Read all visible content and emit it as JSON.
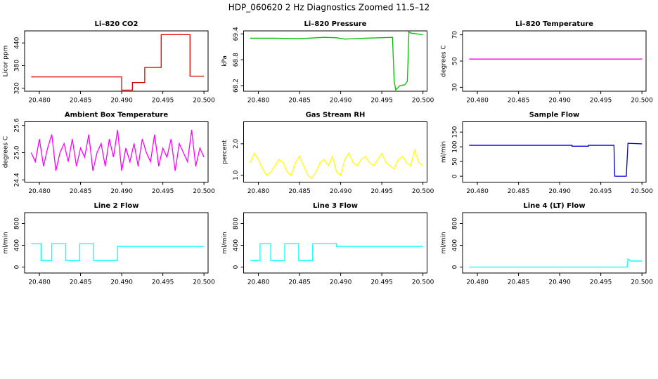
{
  "title": "HDP_060620  2 Hz Diagnostics Zoomed 11.5–12",
  "chart_data": [
    {
      "type": "line",
      "title": "Li–820 CO2",
      "ylabel": "Licor ppm",
      "color": "#e00000",
      "x": [
        20.479,
        20.49,
        20.49,
        20.4913,
        20.4913,
        20.4928,
        20.4928,
        20.4948,
        20.4948,
        20.4983,
        20.4983,
        20.5
      ],
      "values": [
        350,
        350,
        315,
        315,
        335,
        335,
        375,
        375,
        462,
        462,
        352,
        352
      ],
      "xlim": [
        20.4782,
        20.5005
      ],
      "xticks": [
        {
          "value": 20.48,
          "label": "20.480"
        },
        20.485,
        {
          "value": 20.49,
          "label": "20.490"
        },
        20.495,
        {
          "value": 20.5,
          "label": "20.500"
        }
      ],
      "ylim": [
        312,
        472
      ],
      "yticks": [
        320,
        380,
        440
      ]
    },
    {
      "type": "line",
      "title": "Li–820 Pressure",
      "ylabel": "kPa",
      "color": "#00c000",
      "x": [
        20.479,
        20.482,
        20.485,
        20.488,
        20.4895,
        20.4905,
        20.493,
        20.4963,
        20.4965,
        20.4967,
        20.4972,
        20.4978,
        20.4981,
        20.4983,
        20.4985,
        20.5
      ],
      "values": [
        69.3,
        69.3,
        69.29,
        69.32,
        69.31,
        69.28,
        69.3,
        69.32,
        68.3,
        68.1,
        68.2,
        68.22,
        68.3,
        69.45,
        69.42,
        69.38
      ],
      "xlim": [
        20.4782,
        20.5005
      ],
      "xticks": [
        {
          "value": 20.48,
          "label": "20.480"
        },
        20.485,
        {
          "value": 20.49,
          "label": "20.490"
        },
        20.495,
        {
          "value": 20.5,
          "label": "20.500"
        }
      ],
      "ylim": [
        68.07,
        69.47
      ],
      "yticks": [
        68.2,
        68.8,
        69.4
      ]
    },
    {
      "type": "line",
      "title": "Li–820 Temperature",
      "ylabel": "degrees C",
      "color": "#ff00ff",
      "x": [
        20.479,
        20.5
      ],
      "values": [
        51.5,
        51.5
      ],
      "xlim": [
        20.4782,
        20.5005
      ],
      "xticks": [
        {
          "value": 20.48,
          "label": "20.480"
        },
        20.485,
        {
          "value": 20.49,
          "label": "20.490"
        },
        20.495,
        {
          "value": 20.5,
          "label": "20.500"
        }
      ],
      "ylim": [
        27,
        73
      ],
      "yticks": [
        30,
        50,
        70
      ]
    },
    {
      "type": "line",
      "title": "Ambient Box Temperature",
      "ylabel": "degrees C",
      "color": "#ff00ff",
      "x": [
        20.479,
        20.4795,
        20.48,
        20.4805,
        20.481,
        20.4815,
        20.482,
        20.4825,
        20.483,
        20.4835,
        20.484,
        20.4845,
        20.485,
        20.4855,
        20.486,
        20.4865,
        20.487,
        20.4875,
        20.488,
        20.4885,
        20.489,
        20.4895,
        20.49,
        20.4905,
        20.491,
        20.4915,
        20.492,
        20.4925,
        20.493,
        20.4935,
        20.494,
        20.4945,
        20.495,
        20.4955,
        20.496,
        20.4965,
        20.497,
        20.4975,
        20.498,
        20.4985,
        20.499,
        20.4995,
        20.5
      ],
      "values": [
        25.0,
        24.8,
        25.3,
        24.7,
        25.1,
        25.4,
        24.6,
        25.0,
        25.2,
        24.8,
        25.3,
        24.7,
        25.1,
        24.9,
        25.4,
        24.6,
        25.0,
        25.2,
        24.7,
        25.3,
        24.9,
        25.5,
        24.6,
        25.1,
        24.8,
        25.2,
        24.7,
        25.3,
        25.0,
        24.8,
        25.4,
        24.7,
        25.1,
        24.9,
        25.3,
        24.6,
        25.2,
        25.0,
        24.8,
        25.5,
        24.7,
        25.1,
        24.9
      ],
      "xlim": [
        20.4782,
        20.5005
      ],
      "xticks": [
        {
          "value": 20.48,
          "label": "20.480"
        },
        20.485,
        {
          "value": 20.49,
          "label": "20.490"
        },
        20.495,
        {
          "value": 20.5,
          "label": "20.500"
        }
      ],
      "ylim": [
        24.35,
        25.68
      ],
      "yticks": [
        24.4,
        {
          "value": 25,
          "label": "25.0"
        },
        25.6
      ]
    },
    {
      "type": "line",
      "title": "Gas Stream RH",
      "ylabel": "percent",
      "color": "#ffff00",
      "x": [
        20.479,
        20.4795,
        20.48,
        20.4805,
        20.481,
        20.4815,
        20.482,
        20.4825,
        20.483,
        20.4835,
        20.484,
        20.4845,
        20.485,
        20.4855,
        20.486,
        20.4865,
        20.487,
        20.4875,
        20.488,
        20.4885,
        20.489,
        20.4895,
        20.49,
        20.4905,
        20.491,
        20.4915,
        20.492,
        20.4925,
        20.493,
        20.4935,
        20.494,
        20.4945,
        20.495,
        20.4955,
        20.496,
        20.4965,
        20.497,
        20.4975,
        20.498,
        20.4985,
        20.499,
        20.4995,
        20.5
      ],
      "values": [
        1.4,
        1.7,
        1.5,
        1.2,
        1.0,
        1.1,
        1.3,
        1.5,
        1.4,
        1.1,
        1.0,
        1.4,
        1.6,
        1.3,
        1.0,
        0.9,
        1.1,
        1.4,
        1.5,
        1.3,
        1.6,
        1.1,
        1.0,
        1.5,
        1.7,
        1.4,
        1.3,
        1.5,
        1.6,
        1.4,
        1.3,
        1.5,
        1.7,
        1.4,
        1.3,
        1.2,
        1.5,
        1.6,
        1.4,
        1.3,
        1.8,
        1.4,
        1.3
      ],
      "xlim": [
        20.4782,
        20.5005
      ],
      "xticks": [
        {
          "value": 20.48,
          "label": "20.480"
        },
        20.485,
        {
          "value": 20.49,
          "label": "20.490"
        },
        20.495,
        {
          "value": 20.5,
          "label": "20.500"
        }
      ],
      "ylim": [
        0.78,
        2.7
      ],
      "yticks": [
        {
          "value": 1,
          "label": "1.0"
        },
        {
          "value": 2,
          "label": "2.0"
        }
      ]
    },
    {
      "type": "line",
      "title": "Sample Flow",
      "ylabel": "ml/min",
      "color": "#0000dd",
      "x": [
        20.479,
        20.4915,
        20.4915,
        20.4935,
        20.4935,
        20.4966,
        20.4967,
        20.4981,
        20.4983,
        20.5
      ],
      "values": [
        105,
        105,
        102,
        102,
        105,
        105,
        0,
        0,
        112,
        110
      ],
      "xlim": [
        20.4782,
        20.5005
      ],
      "xticks": [
        {
          "value": 20.48,
          "label": "20.480"
        },
        20.485,
        {
          "value": 20.49,
          "label": "20.490"
        },
        20.495,
        {
          "value": 20.5,
          "label": "20.500"
        }
      ],
      "ylim": [
        -20,
        185
      ],
      "yticks": [
        0,
        50,
        100,
        150
      ]
    },
    {
      "type": "line",
      "title": "Line 2 Flow",
      "ylabel": "ml/min",
      "color": "#00ffff",
      "x": [
        20.479,
        20.4802,
        20.4802,
        20.4815,
        20.4815,
        20.4832,
        20.4832,
        20.4849,
        20.4849,
        20.4866,
        20.4866,
        20.4881,
        20.4881,
        20.4895,
        20.4895,
        20.5
      ],
      "values": [
        430,
        430,
        120,
        120,
        430,
        430,
        120,
        120,
        430,
        430,
        120,
        120,
        120,
        120,
        380,
        380
      ],
      "xlim": [
        20.4782,
        20.5005
      ],
      "xticks": [
        {
          "value": 20.48,
          "label": "20.480"
        },
        20.485,
        {
          "value": 20.49,
          "label": "20.490"
        },
        20.495,
        {
          "value": 20.5,
          "label": "20.500"
        }
      ],
      "ylim": [
        -110,
        1000
      ],
      "yticks": [
        0,
        400,
        800
      ]
    },
    {
      "type": "line",
      "title": "Line 3 Flow",
      "ylabel": "ml/min",
      "color": "#00ffff",
      "x": [
        20.479,
        20.4802,
        20.4802,
        20.4815,
        20.4815,
        20.4832,
        20.4832,
        20.4849,
        20.4849,
        20.4866,
        20.4866,
        20.4881,
        20.4881,
        20.4895,
        20.4895,
        20.5
      ],
      "values": [
        120,
        120,
        430,
        430,
        120,
        120,
        430,
        430,
        120,
        120,
        430,
        430,
        430,
        430,
        380,
        380
      ],
      "xlim": [
        20.4782,
        20.5005
      ],
      "xticks": [
        {
          "value": 20.48,
          "label": "20.480"
        },
        20.485,
        {
          "value": 20.49,
          "label": "20.490"
        },
        20.495,
        {
          "value": 20.5,
          "label": "20.500"
        }
      ],
      "ylim": [
        -110,
        1000
      ],
      "yticks": [
        0,
        400,
        800
      ]
    },
    {
      "type": "line",
      "title": "Line 4 (LT) Flow",
      "ylabel": "ml/min",
      "color": "#00ffff",
      "x": [
        20.479,
        20.4982,
        20.4983,
        20.4986,
        20.5
      ],
      "values": [
        0,
        0,
        150,
        110,
        110
      ],
      "xlim": [
        20.4782,
        20.5005
      ],
      "xticks": [
        {
          "value": 20.48,
          "label": "20.480"
        },
        20.485,
        {
          "value": 20.49,
          "label": "20.490"
        },
        20.495,
        {
          "value": 20.5,
          "label": "20.500"
        }
      ],
      "ylim": [
        -110,
        1000
      ],
      "yticks": [
        0,
        400,
        800
      ]
    }
  ]
}
